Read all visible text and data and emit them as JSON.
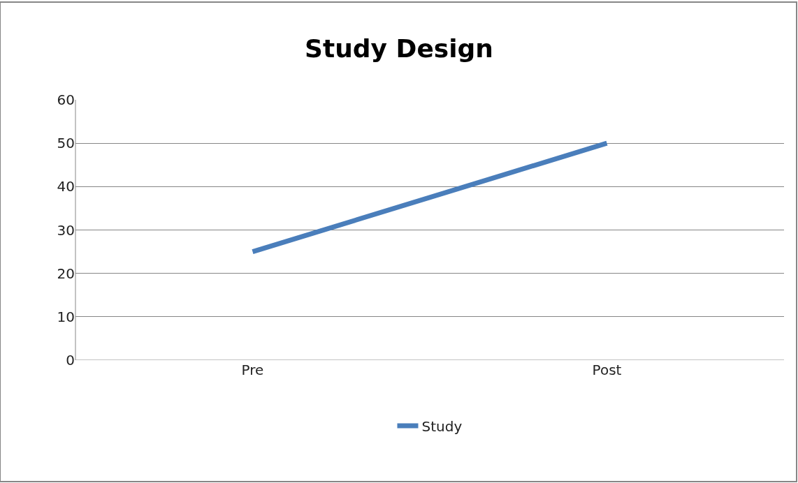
{
  "chart_data": {
    "type": "line",
    "title": "Study Design",
    "categories": [
      "Pre",
      "Post"
    ],
    "series": [
      {
        "name": "Study",
        "color": "#4a7ebb",
        "values": [
          25,
          50
        ]
      }
    ],
    "ylim": [
      0,
      60
    ],
    "yticks": [
      0,
      10,
      20,
      30,
      40,
      50,
      60
    ],
    "grid": "y",
    "legend": "bottom",
    "marker": "none",
    "line_style": "solid"
  }
}
